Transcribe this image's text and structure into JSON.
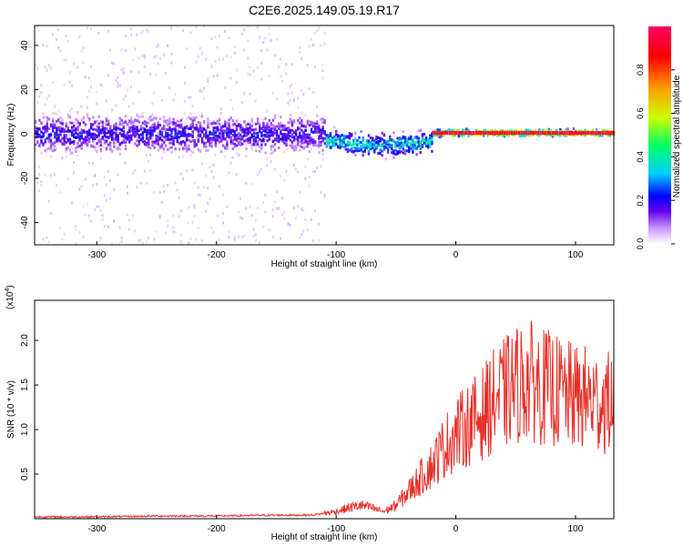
{
  "title": "C2E6.2025.149.05.19.R17",
  "chart_data": [
    {
      "type": "heatmap",
      "xlabel": "Height of straight line (km)",
      "ylabel": "Frequency (Hz)",
      "xlim": [
        -352,
        132
      ],
      "ylim": [
        -50,
        49
      ],
      "xticks": [
        -300,
        -200,
        -100,
        0,
        100
      ],
      "yticks": [
        -40,
        -20,
        0,
        20,
        40
      ],
      "colorbar": {
        "label": "Normalized spectral amplitude",
        "range": [
          0,
          1
        ],
        "ticks": [
          "0.0",
          "0.2",
          "0.4",
          "0.6",
          "0.8"
        ],
        "colormap": [
          "#ffffff",
          "#cc99ff",
          "#6600ee",
          "#0000ff",
          "#00ccff",
          "#00ff66",
          "#ccff00",
          "#ff9900",
          "#ff0000",
          "#ff0066"
        ]
      },
      "description_series": [
        {
          "x_range": [
            -352,
            -110
          ],
          "band_center_hz": 0,
          "band_halfwidth_hz": 8,
          "amplitude": 0.22
        },
        {
          "x_range": [
            -110,
            -20
          ],
          "band_center_hz": -3,
          "band_halfwidth_hz": 5,
          "amplitude": 0.4
        },
        {
          "x_range": [
            -20,
            132
          ],
          "band_center_hz": 0.5,
          "band_halfwidth_hz": 1.5,
          "amplitude": 0.95
        }
      ]
    },
    {
      "type": "line",
      "xlabel": "Height of straight line (km)",
      "ylabel": "SNR (10 * v/v)",
      "y_multiplier": "(x10",
      "y_multiplier_exp": "4",
      "y_multiplier_close": ")",
      "xlim": [
        -352,
        132
      ],
      "ylim": [
        0,
        2.45
      ],
      "xticks": [
        -300,
        -200,
        -100,
        0,
        100
      ],
      "yticks": [
        "0.5",
        "1.0",
        "1.5",
        "2.0"
      ],
      "color": "#e8302a",
      "series": [
        {
          "x": [
            -352,
            -300,
            -250,
            -200,
            -150,
            -120,
            -100,
            -90,
            -80,
            -70,
            -60,
            -50,
            -40,
            -30,
            -20,
            -10,
            0,
            10,
            20,
            30,
            40,
            50,
            60,
            70,
            80,
            90,
            100,
            110,
            120,
            132
          ],
          "y": [
            0.02,
            0.02,
            0.03,
            0.03,
            0.04,
            0.04,
            0.08,
            0.12,
            0.15,
            0.12,
            0.08,
            0.15,
            0.3,
            0.45,
            0.6,
            0.8,
            0.95,
            1.05,
            1.15,
            1.3,
            1.4,
            1.5,
            1.55,
            1.5,
            1.45,
            1.4,
            1.35,
            1.35,
            1.3,
            1.3
          ]
        }
      ]
    }
  ]
}
